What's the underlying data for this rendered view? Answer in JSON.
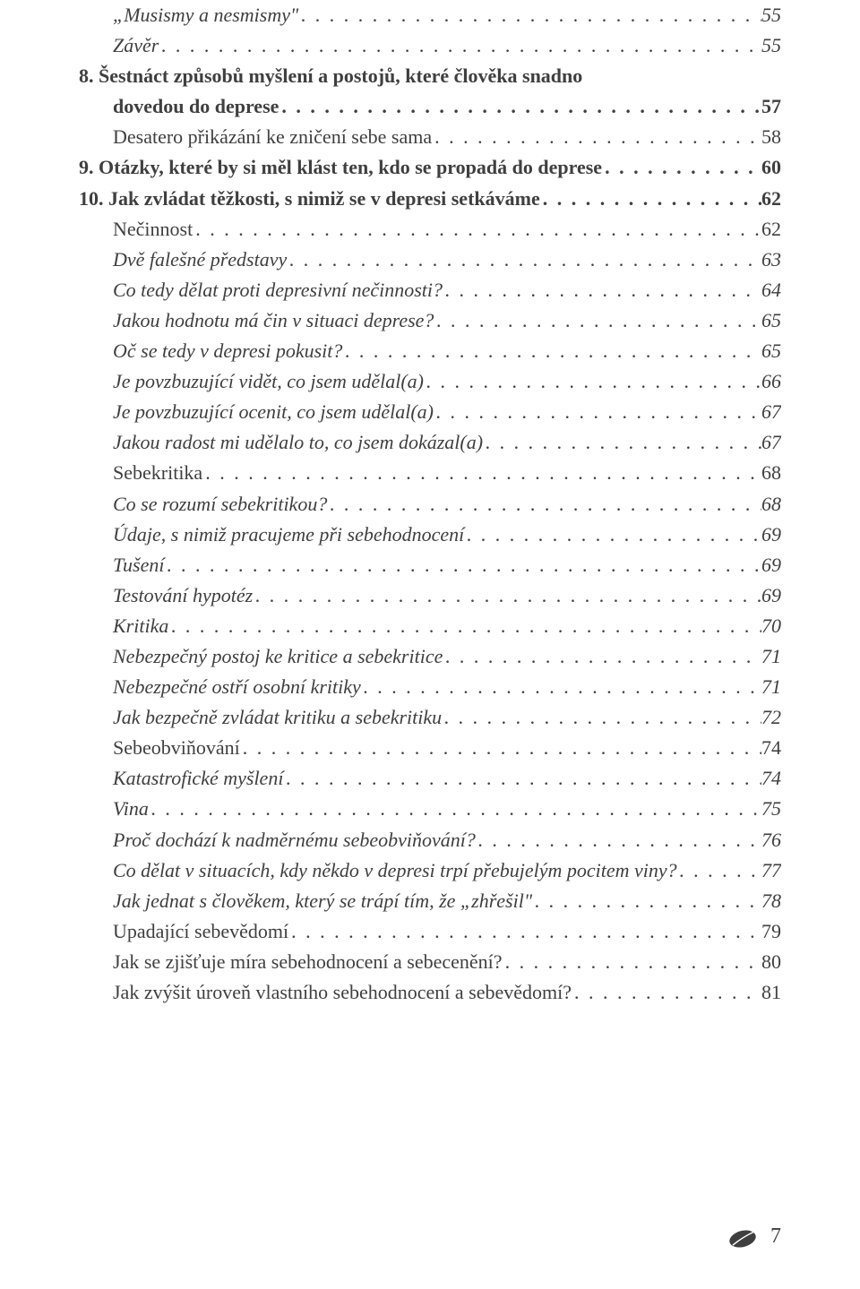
{
  "toc": [
    {
      "label": "„Musismy a nesmismy\"",
      "page": "55",
      "cls": "lvl2"
    },
    {
      "label": "Závěr",
      "page": "55",
      "cls": "lvl2"
    },
    {
      "label": "8.  Šestnáct způsobů myšlení a postojů, které člověka snadno",
      "page": "",
      "cls": "bold",
      "nodots": true
    },
    {
      "label": "dovedou do deprese",
      "page": "57",
      "cls": "bold cont"
    },
    {
      "label": "Desatero přikázání ke zničení sebe sama",
      "page": "58",
      "cls": "lvl1"
    },
    {
      "label": "9.  Otázky, které by si měl klást ten, kdo se propadá do deprese",
      "page": "60",
      "cls": "bold"
    },
    {
      "label": "10.  Jak zvládat těžkosti, s nimiž se v depresi setkáváme",
      "page": "62",
      "cls": "bold"
    },
    {
      "label": "Nečinnost",
      "page": "62",
      "cls": "lvl1"
    },
    {
      "label": "Dvě falešné představy",
      "page": "63",
      "cls": "lvl2"
    },
    {
      "label": "Co tedy dělat proti depresivní nečinnosti?",
      "page": "64",
      "cls": "lvl2"
    },
    {
      "label": "Jakou hodnotu má čin v situaci deprese?",
      "page": "65",
      "cls": "lvl2"
    },
    {
      "label": "Oč se tedy v depresi pokusit?",
      "page": "65",
      "cls": "lvl2"
    },
    {
      "label": "Je povzbuzující vidět, co jsem udělal(a)",
      "page": "66",
      "cls": "lvl2"
    },
    {
      "label": "Je povzbuzující ocenit, co jsem udělal(a)",
      "page": "67",
      "cls": "lvl2"
    },
    {
      "label": "Jakou radost mi udělalo to, co jsem dokázal(a)",
      "page": "67",
      "cls": "lvl2"
    },
    {
      "label": "Sebekritika",
      "page": "68",
      "cls": "lvl1"
    },
    {
      "label": "Co se rozumí sebekritikou?",
      "page": "68",
      "cls": "lvl2"
    },
    {
      "label": "Údaje, s nimiž pracujeme při sebehodnocení",
      "page": "69",
      "cls": "lvl2"
    },
    {
      "label": "Tušení",
      "page": "69",
      "cls": "lvl2"
    },
    {
      "label": "Testování hypotéz",
      "page": "69",
      "cls": "lvl2"
    },
    {
      "label": "Kritika",
      "page": "70",
      "cls": "lvl2"
    },
    {
      "label": "Nebezpečný postoj ke kritice a sebekritice",
      "page": "71",
      "cls": "lvl2"
    },
    {
      "label": "Nebezpečné ostří osobní kritiky",
      "page": "71",
      "cls": "lvl2"
    },
    {
      "label": "Jak bezpečně zvládat kritiku a sebekritiku",
      "page": "72",
      "cls": "lvl2"
    },
    {
      "label": "Sebeobviňování",
      "page": "74",
      "cls": "lvl1"
    },
    {
      "label": "Katastrofické myšlení",
      "page": "74",
      "cls": "lvl2"
    },
    {
      "label": "Vina",
      "page": "75",
      "cls": "lvl2"
    },
    {
      "label": "Proč dochází k nadměrnému sebeobviňování?",
      "page": "76",
      "cls": "lvl2"
    },
    {
      "label": "Co dělat v situacích, kdy někdo v depresi trpí přebujelým pocitem viny?",
      "page": "77",
      "cls": "lvl2"
    },
    {
      "label": "Jak jednat s člověkem, který se trápí tím, že „zhřešil\"",
      "page": "78",
      "cls": "lvl2"
    },
    {
      "label": "Upadající sebevědomí",
      "page": "79",
      "cls": "lvl1"
    },
    {
      "label": "Jak se zjišťuje míra sebehodnocení a sebecenění?",
      "page": "80",
      "cls": "lvl1"
    },
    {
      "label": "Jak zvýšit úroveň vlastního sebehodnocení a sebevědomí?",
      "page": "81",
      "cls": "lvl1"
    }
  ],
  "footer": {
    "page_number": "7",
    "icon_color": "#3f3f3f"
  }
}
